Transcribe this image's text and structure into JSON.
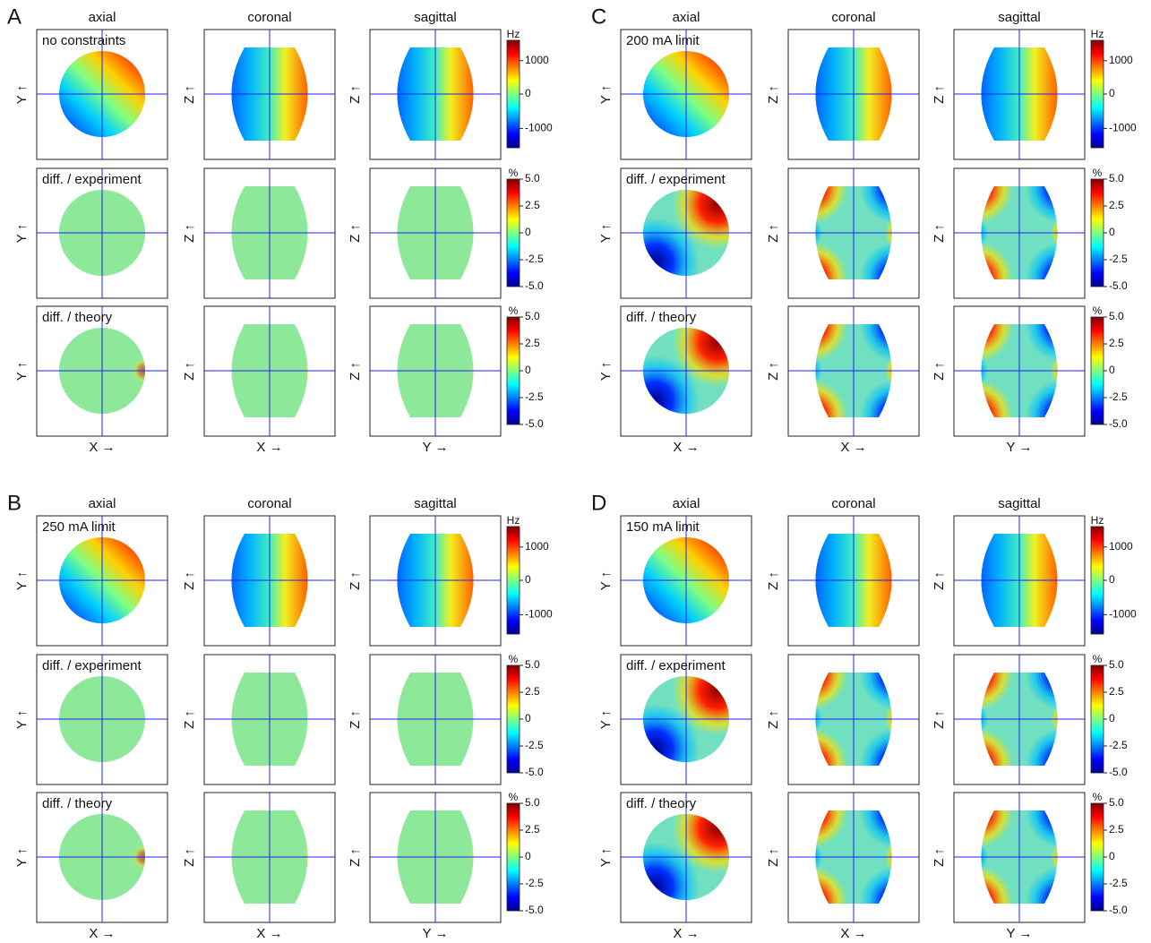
{
  "panels": [
    {
      "letter": "A",
      "columns": [
        "axial",
        "coronal",
        "sagittal"
      ],
      "x_labels": [
        "X →",
        "X →",
        "Y →"
      ],
      "rows": [
        {
          "label": "no constraints",
          "y_labels": [
            "Y ↑",
            "Z ↑",
            "Z ↑"
          ],
          "colorbar": {
            "unit": "Hz",
            "ticks": [
              "1000",
              "0",
              "-1000"
            ]
          }
        },
        {
          "label": "diff. / experiment",
          "y_labels": [
            "Y ↑",
            "Z ↑",
            "Z ↑"
          ],
          "colorbar": {
            "unit": "%",
            "ticks": [
              "5.0",
              "2.5",
              "0",
              "-2.5",
              "-5.0"
            ]
          }
        },
        {
          "label": "diff. / theory",
          "y_labels": [
            "Y ↑",
            "Z ↑",
            "Z ↑"
          ],
          "colorbar": {
            "unit": "%",
            "ticks": [
              "5.0",
              "2.5",
              "0",
              "-2.5",
              "-5.0"
            ]
          }
        }
      ]
    },
    {
      "letter": "C",
      "columns": [
        "axial",
        "coronal",
        "sagittal"
      ],
      "x_labels": [
        "X →",
        "X →",
        "Y →"
      ],
      "rows": [
        {
          "label": "200 mA limit",
          "y_labels": [
            "Y ↑",
            "Z ↑",
            "Z ↑"
          ],
          "colorbar": {
            "unit": "Hz",
            "ticks": [
              "1000",
              "0",
              "-1000"
            ]
          }
        },
        {
          "label": "diff. / experiment",
          "y_labels": [
            "Y ↑",
            "Z ↑",
            "Z ↑"
          ],
          "colorbar": {
            "unit": "%",
            "ticks": [
              "5.0",
              "2.5",
              "0",
              "-2.5",
              "-5.0"
            ]
          }
        },
        {
          "label": "diff. / theory",
          "y_labels": [
            "Y ↑",
            "Z ↑",
            "Z ↑"
          ],
          "colorbar": {
            "unit": "%",
            "ticks": [
              "5.0",
              "2.5",
              "0",
              "-2.5",
              "-5.0"
            ]
          }
        }
      ]
    },
    {
      "letter": "B",
      "columns": [
        "axial",
        "coronal",
        "sagittal"
      ],
      "x_labels": [
        "X →",
        "X →",
        "Y →"
      ],
      "rows": [
        {
          "label": "250 mA limit",
          "y_labels": [
            "Y ↑",
            "Z ↑",
            "Z ↑"
          ],
          "colorbar": {
            "unit": "Hz",
            "ticks": [
              "1000",
              "0",
              "-1000"
            ]
          }
        },
        {
          "label": "diff. / experiment",
          "y_labels": [
            "Y ↑",
            "Z ↑",
            "Z ↑"
          ],
          "colorbar": {
            "unit": "%",
            "ticks": [
              "5.0",
              "2.5",
              "0",
              "-2.5",
              "-5.0"
            ]
          }
        },
        {
          "label": "diff. / theory",
          "y_labels": [
            "Y ↑",
            "Z ↑",
            "Z ↑"
          ],
          "colorbar": {
            "unit": "%",
            "ticks": [
              "5.0",
              "2.5",
              "0",
              "-2.5",
              "-5.0"
            ]
          }
        }
      ]
    },
    {
      "letter": "D",
      "columns": [
        "axial",
        "coronal",
        "sagittal"
      ],
      "x_labels": [
        "X →",
        "X →",
        "Y →"
      ],
      "rows": [
        {
          "label": "150 mA limit",
          "y_labels": [
            "Y ↑",
            "Z ↑",
            "Z ↑"
          ],
          "colorbar": {
            "unit": "Hz",
            "ticks": [
              "1000",
              "0",
              "-1000"
            ]
          }
        },
        {
          "label": "diff. / experiment",
          "y_labels": [
            "Y ↑",
            "Z ↑",
            "Z ↑"
          ],
          "colorbar": {
            "unit": "%",
            "ticks": [
              "5.0",
              "2.5",
              "0",
              "-2.5",
              "-5.0"
            ]
          }
        },
        {
          "label": "diff. / theory",
          "y_labels": [
            "Y ↑",
            "Z ↑",
            "Z ↑"
          ],
          "colorbar": {
            "unit": "%",
            "ticks": [
              "5.0",
              "2.5",
              "0",
              "-2.5",
              "-5.0"
            ]
          }
        }
      ]
    }
  ]
}
